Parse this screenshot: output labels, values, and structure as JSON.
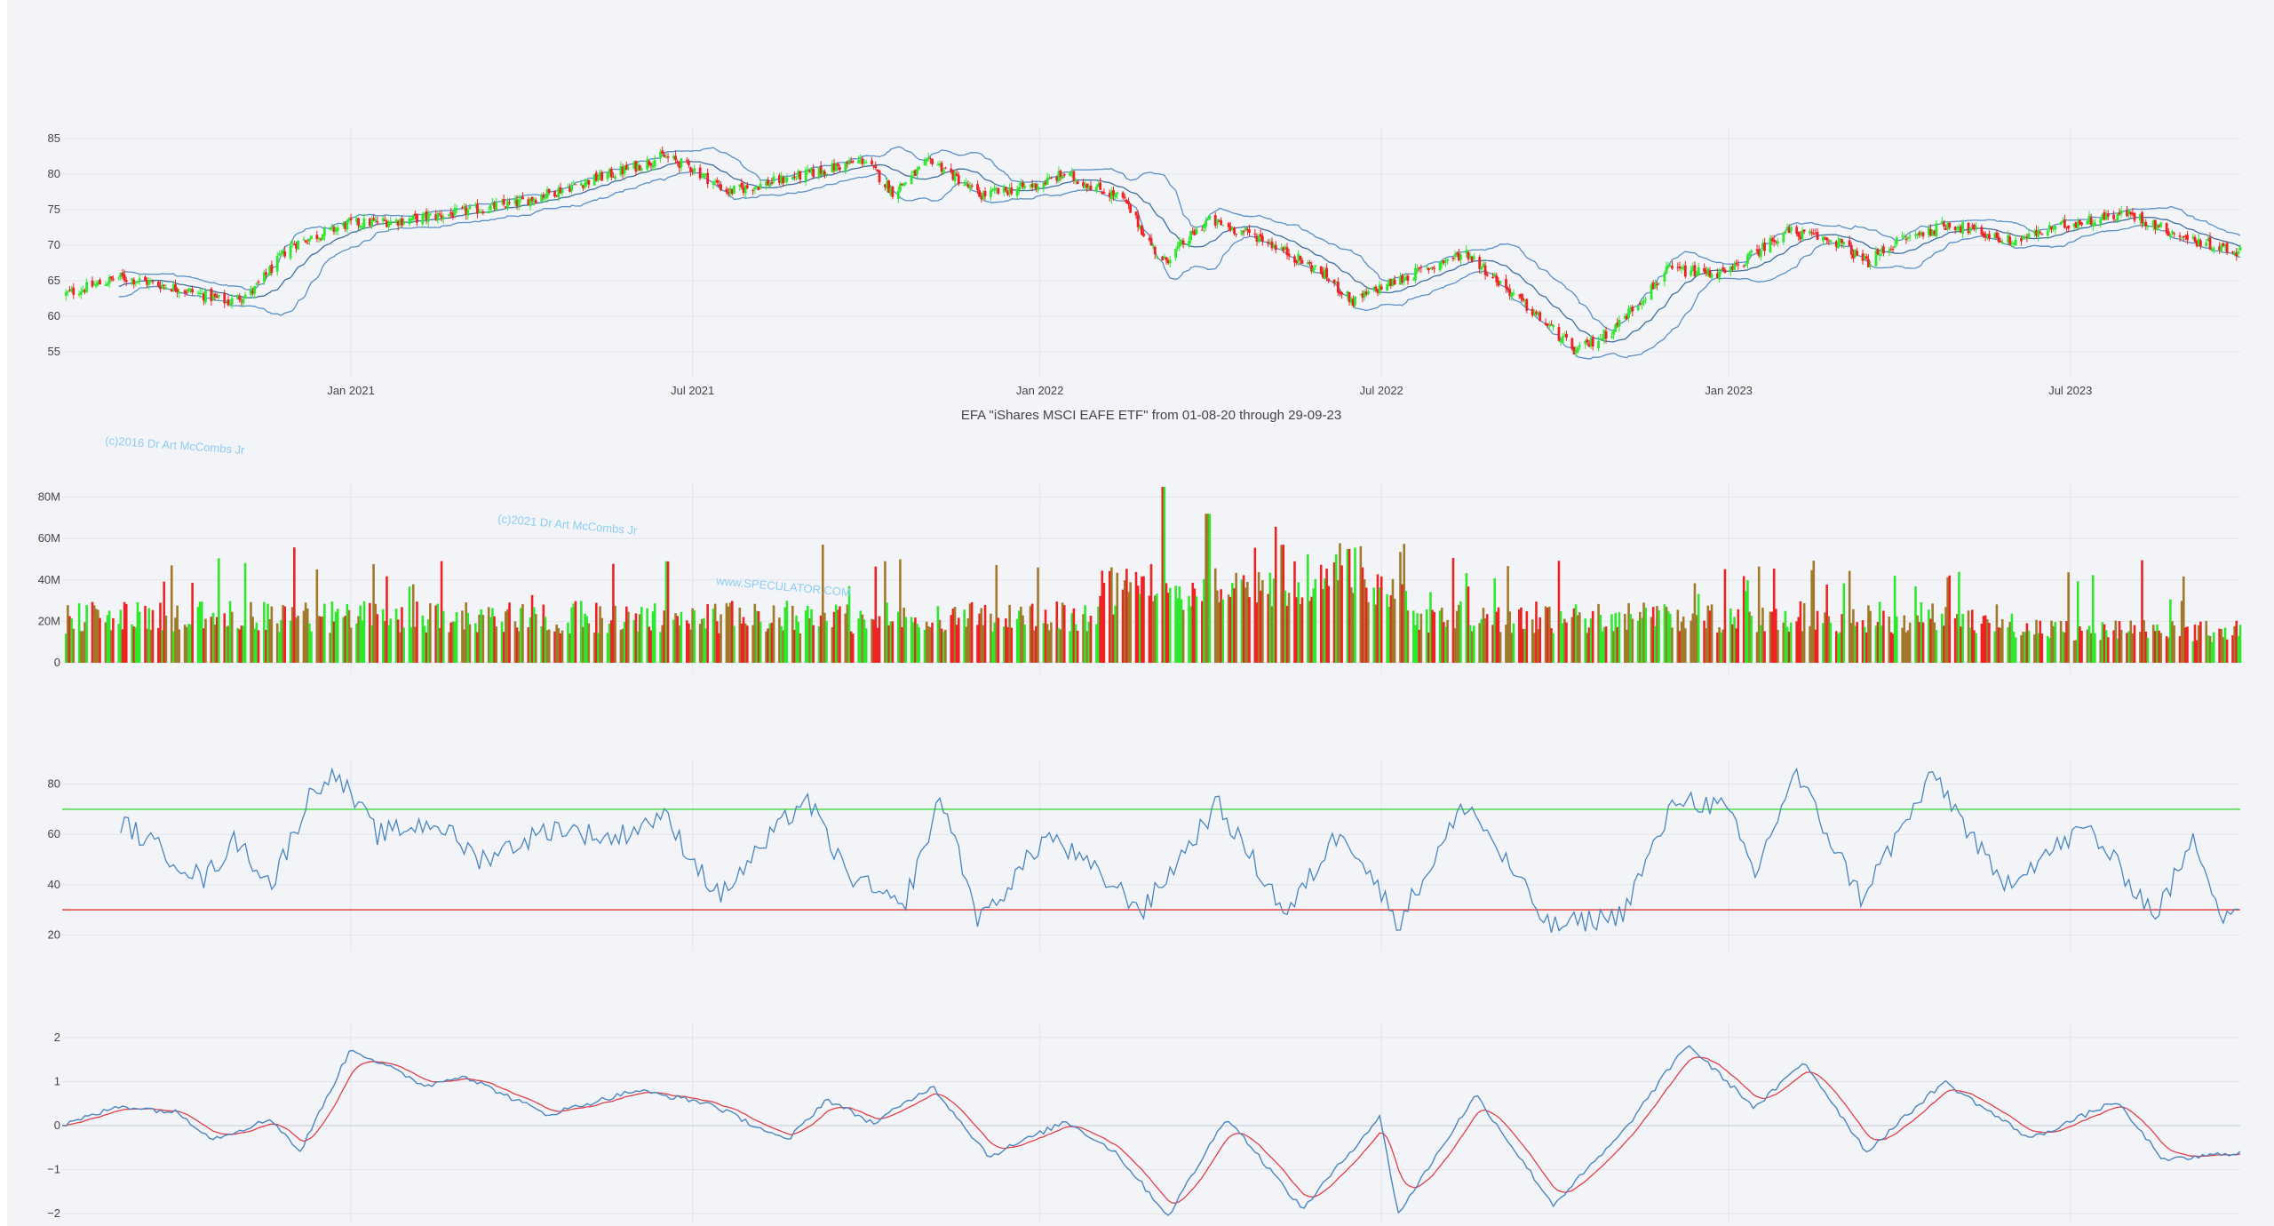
{
  "title": "EFA \"iShares MSCI EAFE ETF\" from 01-08-20 through 29-09-23",
  "watermarks": [
    "(c)2016 Dr Art McCombs Jr",
    "(c)2021 Dr Art McCombs Jr",
    "www.SPECULATOR.COM"
  ],
  "colors": {
    "background": "#f3f4f8",
    "up": "#2ee82e",
    "down": "#ee2222",
    "volume_mix": "#a07a2a",
    "line_blue": "#4a86c0",
    "bollinger": "#5b8fc7",
    "overbought": "#3fdc3f",
    "oversold": "#e63030",
    "signal_red": "#e0404a",
    "grid": "#e3e4ea",
    "axis_text": "#444444"
  },
  "chart_data": [
    {
      "type": "candlestick",
      "name": "price",
      "x_range": [
        "2020-08-01",
        "2023-09-29"
      ],
      "x_ticks": [
        "Jan 2021",
        "Jul 2021",
        "Jan 2022",
        "Jul 2022",
        "Jan 2023",
        "Jul 2023"
      ],
      "y_ticks": [
        55,
        60,
        65,
        70,
        75,
        80,
        85
      ],
      "ylim": [
        53,
        86
      ],
      "overlays": [
        "Bollinger upper",
        "Bollinger middle",
        "Bollinger lower"
      ],
      "close_points": [
        [
          "2020-08-01",
          63.0
        ],
        [
          "2020-09-01",
          65.5
        ],
        [
          "2020-10-01",
          64.0
        ],
        [
          "2020-10-28",
          62.0
        ],
        [
          "2020-11-10",
          63.5
        ],
        [
          "2020-11-30",
          70.0
        ],
        [
          "2020-12-31",
          73.0
        ],
        [
          "2021-01-29",
          73.5
        ],
        [
          "2021-02-26",
          74.5
        ],
        [
          "2021-03-31",
          76.0
        ],
        [
          "2021-04-30",
          78.5
        ],
        [
          "2021-05-31",
          81.0
        ],
        [
          "2021-06-15",
          82.5
        ],
        [
          "2021-06-30",
          81.0
        ],
        [
          "2021-07-20",
          77.5
        ],
        [
          "2021-08-31",
          80.0
        ],
        [
          "2021-09-30",
          82.0
        ],
        [
          "2021-10-15",
          77.5
        ],
        [
          "2021-11-05",
          82.0
        ],
        [
          "2021-11-30",
          77.0
        ],
        [
          "2021-12-31",
          78.5
        ],
        [
          "2022-01-14",
          80.0
        ],
        [
          "2022-02-14",
          76.5
        ],
        [
          "2022-03-07",
          67.5
        ],
        [
          "2022-03-31",
          73.5
        ],
        [
          "2022-04-29",
          71.0
        ],
        [
          "2022-05-31",
          66.0
        ],
        [
          "2022-06-16",
          62.0
        ],
        [
          "2022-06-30",
          64.0
        ],
        [
          "2022-08-15",
          69.0
        ],
        [
          "2022-09-30",
          58.0
        ],
        [
          "2022-10-12",
          55.0
        ],
        [
          "2022-10-31",
          58.0
        ],
        [
          "2022-11-30",
          66.5
        ],
        [
          "2022-12-31",
          66.0
        ],
        [
          "2023-01-31",
          72.0
        ],
        [
          "2023-02-28",
          70.5
        ],
        [
          "2023-03-15",
          67.5
        ],
        [
          "2023-03-31",
          70.5
        ],
        [
          "2023-04-28",
          73.0
        ],
        [
          "2023-05-31",
          70.5
        ],
        [
          "2023-06-30",
          73.0
        ],
        [
          "2023-07-31",
          74.5
        ],
        [
          "2023-08-31",
          71.0
        ],
        [
          "2023-09-29",
          69.0
        ]
      ]
    },
    {
      "type": "bar",
      "name": "volume",
      "y_ticks": [
        "0",
        "20M",
        "40M",
        "60M",
        "80M"
      ],
      "ylim": [
        0,
        85000000
      ],
      "peak_points": [
        [
          "2022-03-07",
          85000000
        ],
        [
          "2022-03-31",
          72000000
        ],
        [
          "2021-06-18",
          49000000
        ],
        [
          "2022-05-09",
          57000000
        ],
        [
          "2022-06-13",
          55000000
        ]
      ]
    },
    {
      "type": "line",
      "name": "rsi",
      "y_ticks": [
        20,
        40,
        60,
        80
      ],
      "ylim": [
        18,
        88
      ],
      "reference_lines": [
        70,
        30
      ],
      "points": [
        [
          "2020-09-01",
          65
        ],
        [
          "2020-10-15",
          42
        ],
        [
          "2020-11-01",
          58
        ],
        [
          "2020-11-20",
          40
        ],
        [
          "2020-12-10",
          75
        ],
        [
          "2020-12-22",
          86
        ],
        [
          "2021-01-15",
          60
        ],
        [
          "2021-02-15",
          65
        ],
        [
          "2021-03-10",
          50
        ],
        [
          "2021-04-20",
          63
        ],
        [
          "2021-05-20",
          58
        ],
        [
          "2021-06-15",
          68
        ],
        [
          "2021-07-15",
          35
        ],
        [
          "2021-08-30",
          75
        ],
        [
          "2021-09-20",
          45
        ],
        [
          "2021-10-20",
          30
        ],
        [
          "2021-11-10",
          75
        ],
        [
          "2021-11-30",
          25
        ],
        [
          "2022-01-05",
          60
        ],
        [
          "2022-02-25",
          30
        ],
        [
          "2022-04-05",
          72
        ],
        [
          "2022-05-12",
          28
        ],
        [
          "2022-06-10",
          63
        ],
        [
          "2022-07-10",
          25
        ],
        [
          "2022-08-15",
          73
        ],
        [
          "2022-09-28",
          23
        ],
        [
          "2022-11-05",
          28
        ],
        [
          "2022-12-05",
          75
        ],
        [
          "2022-12-31",
          70
        ],
        [
          "2023-01-15",
          44
        ],
        [
          "2023-02-05",
          85
        ],
        [
          "2023-03-12",
          35
        ],
        [
          "2023-04-20",
          84
        ],
        [
          "2023-05-25",
          40
        ],
        [
          "2023-07-10",
          63
        ],
        [
          "2023-08-15",
          28
        ],
        [
          "2023-09-05",
          58
        ],
        [
          "2023-09-20",
          28
        ],
        [
          "2023-09-29",
          32
        ]
      ]
    },
    {
      "type": "line",
      "name": "macd",
      "series": [
        "indicator (blue)",
        "signal (red)"
      ],
      "y_ticks": [
        "−2",
        "−1",
        "0",
        "1",
        "2"
      ],
      "ylim": [
        -2.2,
        2.2
      ],
      "points": [
        [
          "2020-08-01",
          0.0
        ],
        [
          "2020-09-01",
          0.45
        ],
        [
          "2020-10-01",
          0.3
        ],
        [
          "2020-10-20",
          -0.3
        ],
        [
          "2020-11-20",
          0.15
        ],
        [
          "2020-12-05",
          -0.6
        ],
        [
          "2021-01-01",
          1.75
        ],
        [
          "2021-02-10",
          0.9
        ],
        [
          "2021-03-01",
          1.15
        ],
        [
          "2021-04-15",
          0.25
        ],
        [
          "2021-06-01",
          0.8
        ],
        [
          "2021-07-10",
          0.5
        ],
        [
          "2021-08-20",
          -0.35
        ],
        [
          "2021-09-10",
          0.6
        ],
        [
          "2021-10-05",
          0.05
        ],
        [
          "2021-11-05",
          0.9
        ],
        [
          "2021-12-05",
          -0.7
        ],
        [
          "2022-01-15",
          0.1
        ],
        [
          "2022-02-10",
          -0.6
        ],
        [
          "2022-03-10",
          -2.05
        ],
        [
          "2022-04-10",
          0.2
        ],
        [
          "2022-05-20",
          -1.9
        ],
        [
          "2022-06-30",
          0.2
        ],
        [
          "2022-07-10",
          -2.0
        ],
        [
          "2022-08-20",
          0.7
        ],
        [
          "2022-09-30",
          -1.8
        ],
        [
          "2022-11-05",
          -0.2
        ],
        [
          "2022-12-10",
          1.85
        ],
        [
          "2023-01-15",
          0.4
        ],
        [
          "2023-02-10",
          1.45
        ],
        [
          "2023-03-15",
          -0.6
        ],
        [
          "2023-04-25",
          1.0
        ],
        [
          "2023-06-10",
          -0.3
        ],
        [
          "2023-07-25",
          0.55
        ],
        [
          "2023-08-20",
          -0.8
        ],
        [
          "2023-09-29",
          -0.6
        ]
      ]
    }
  ]
}
